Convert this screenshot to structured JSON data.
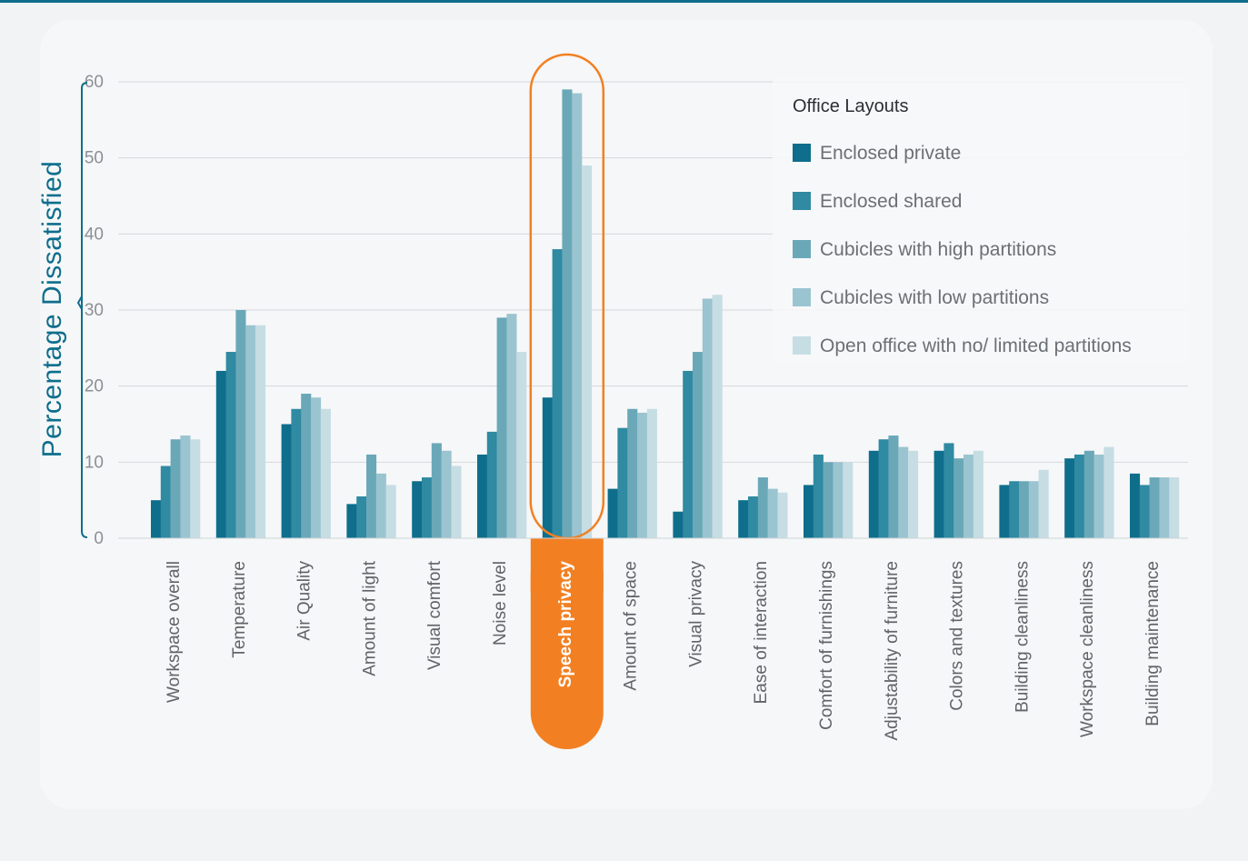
{
  "chart_data": {
    "type": "bar",
    "ylabel": "Percentage Dissatisfied",
    "xlabel": "",
    "ylim": [
      0,
      60
    ],
    "yticks": [
      0,
      10,
      20,
      30,
      40,
      50,
      60
    ],
    "grid": true,
    "legend_title": "Office Layouts",
    "legend_position": "top-right",
    "highlight_category": "Speech privacy",
    "highlight_color": "#f28022",
    "categories": [
      "Workspace overall",
      "Temperature",
      "Air Quality",
      "Amount of light",
      "Visual comfort",
      "Noise level",
      "Speech privacy",
      "Amount of space",
      "Visual privacy",
      "Ease of interaction",
      "Comfort of furnishings",
      "Adjustability of furniture",
      "Colors and textures",
      "Building cleanliness",
      "Workspace cleanliness",
      "Building maintenance"
    ],
    "series": [
      {
        "name": "Enclosed private",
        "color": "#0e6e8c",
        "values": [
          5,
          22,
          15,
          4.5,
          7.5,
          11,
          18.5,
          6.5,
          3.5,
          5,
          7,
          11.5,
          11.5,
          7,
          10.5,
          8.5
        ]
      },
      {
        "name": "Enclosed shared",
        "color": "#2f8aa2",
        "values": [
          9.5,
          24.5,
          17,
          5.5,
          8,
          14,
          38,
          14.5,
          22,
          5.5,
          11,
          13,
          12.5,
          7.5,
          11,
          7
        ]
      },
      {
        "name": "Cubicles with high partitions",
        "color": "#6aa8b8",
        "values": [
          13,
          30,
          19,
          11,
          12.5,
          29,
          59,
          17,
          24.5,
          8,
          10,
          13.5,
          10.5,
          7.5,
          11.5,
          8
        ]
      },
      {
        "name": "Cubicles with low partitions",
        "color": "#9ac4d0",
        "values": [
          13.5,
          28,
          18.5,
          8.5,
          11.5,
          29.5,
          58.5,
          16.5,
          31.5,
          6.5,
          10,
          12,
          11,
          7.5,
          11,
          8
        ]
      },
      {
        "name": "Open office with no/ limited partitions",
        "color": "#c6dde4",
        "values": [
          13,
          28,
          17,
          7,
          9.5,
          24.5,
          49,
          17,
          32,
          6,
          10,
          11.5,
          11.5,
          9,
          12,
          8
        ]
      }
    ]
  }
}
